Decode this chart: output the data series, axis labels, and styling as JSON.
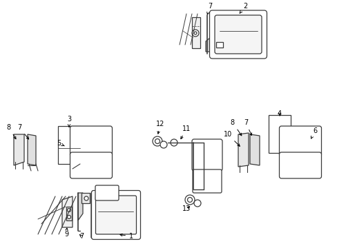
{
  "bg_color": "#ffffff",
  "line_color": "#3a3a3a",
  "text_color": "#000000",
  "diagrams": {
    "d1": {
      "bx": 0.175,
      "by": 0.77
    },
    "d2": {
      "bx": 0.67,
      "by": 0.8
    },
    "d3": {
      "bx": 0.155,
      "by": 0.42
    },
    "d4": {
      "bx": 0.8,
      "by": 0.42
    },
    "d5": {
      "bx": 0.485,
      "by": 0.28
    }
  }
}
